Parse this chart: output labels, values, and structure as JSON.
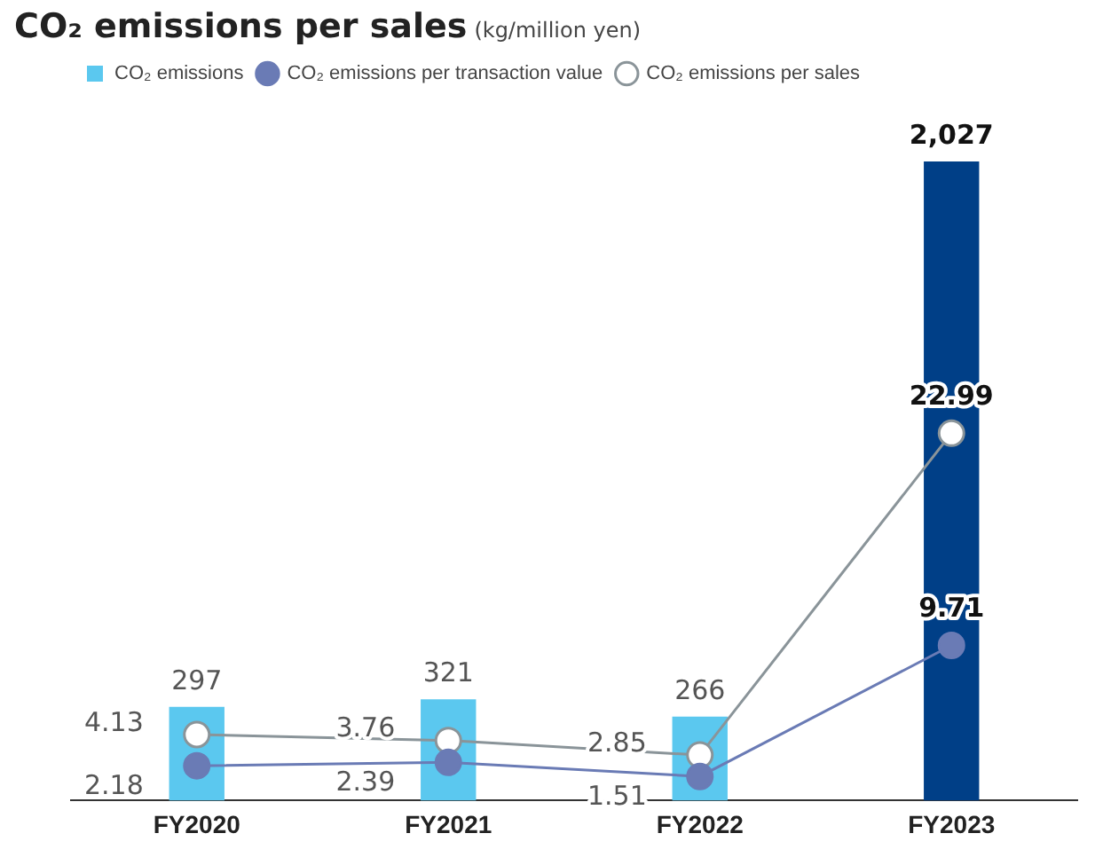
{
  "chart_data": {
    "type": "bar",
    "title": "CO₂ emissions per sales",
    "subtitle": "(kg/million yen)",
    "categories": [
      "FY2020",
      "FY2021",
      "FY2022",
      "FY2023"
    ],
    "series": [
      {
        "name": "CO₂ emissions",
        "colors": [
          "#5bc8ef",
          "#5bc8ef",
          "#5bc8ef",
          "#003f87"
        ],
        "values": [
          297,
          321,
          266,
          2027
        ],
        "value_labels": [
          "297",
          "321",
          "266",
          "2,027"
        ]
      },
      {
        "name": "CO₂ emissions per transaction value",
        "type": "line",
        "axis": "y2",
        "color": "#6a7bb5",
        "marker": "circle",
        "values": [
          2.18,
          2.39,
          1.51,
          9.71
        ]
      },
      {
        "name": "CO₂ emissions per sales",
        "type": "line",
        "axis": "y2",
        "color": "#8a9499",
        "marker": "circle",
        "values": [
          4.13,
          3.76,
          2.85,
          22.99
        ]
      }
    ],
    "ylim": [
      0,
      2027
    ],
    "y2lim": [
      0,
      40
    ],
    "tick_labels": "x",
    "data_labels": true,
    "legend": "top left",
    "grid": false
  }
}
